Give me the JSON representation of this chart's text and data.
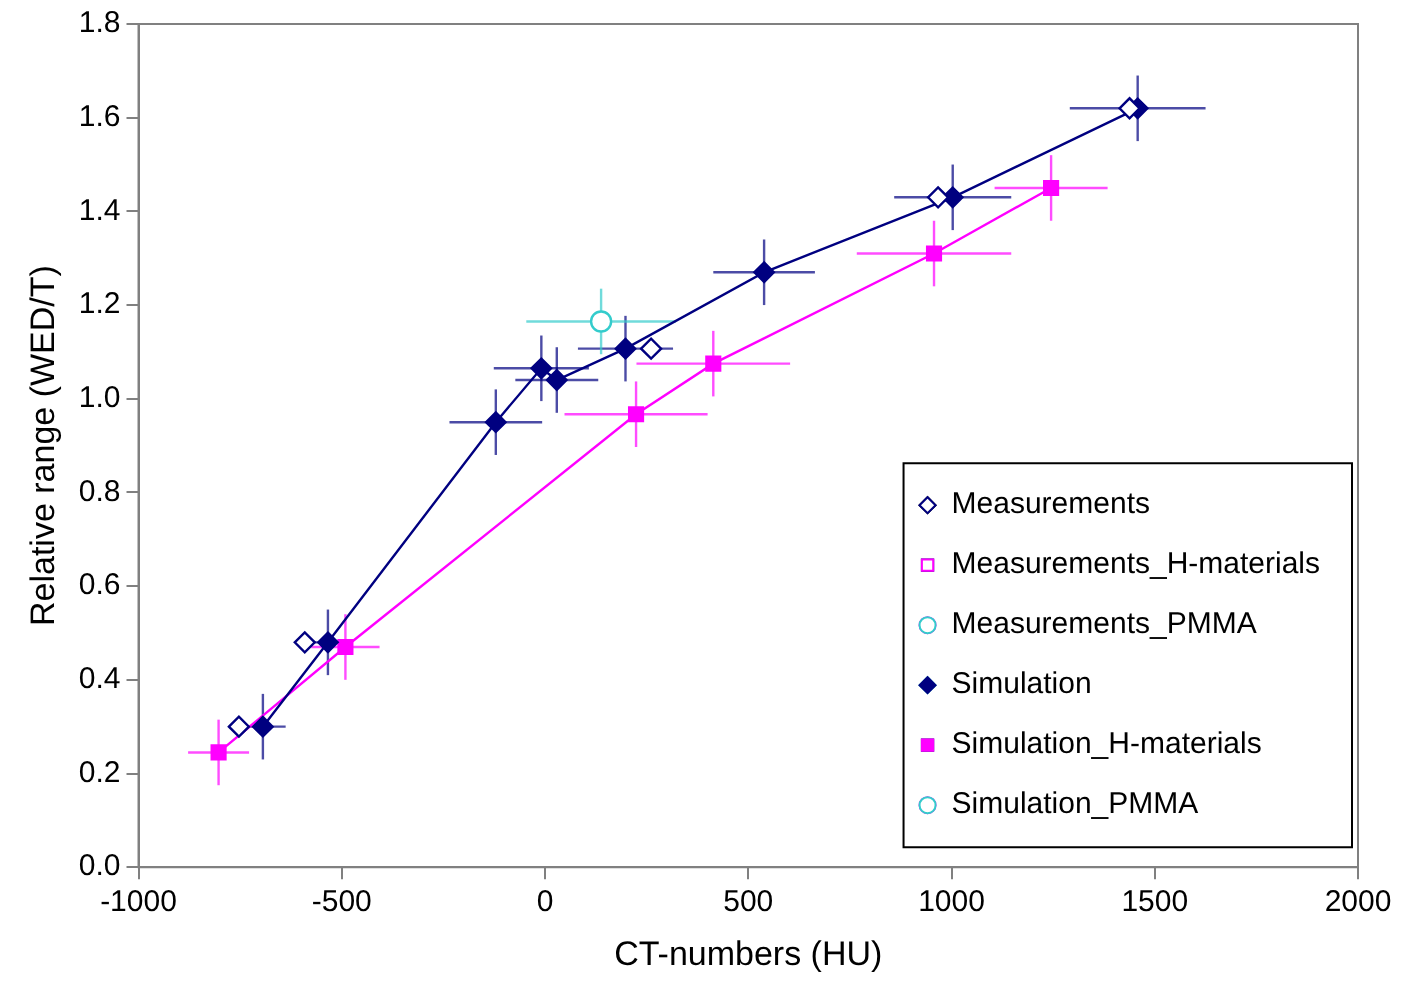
{
  "chart_data": {
    "type": "scatter",
    "xlabel": "CT-numbers (HU)",
    "ylabel": "Relative range (WED/T)",
    "xlim": [
      -1000,
      2000
    ],
    "xticks": [
      -1000,
      -500,
      0,
      500,
      1000,
      1500,
      2000
    ],
    "ylim": [
      0,
      1.8
    ],
    "yticks": [
      {
        "value": 0,
        "label": "0.0"
      },
      {
        "value": 0.2,
        "label": "0.2"
      },
      {
        "value": 0.4,
        "label": "0.4"
      },
      {
        "value": 0.6,
        "label": "0.6"
      },
      {
        "value": 0.8,
        "label": "0.8"
      },
      {
        "value": 1,
        "label": "1.0"
      },
      {
        "value": 1.2,
        "label": "1.2"
      },
      {
        "value": 1.4,
        "label": "1.4"
      },
      {
        "value": 1.6,
        "label": "1.6"
      },
      {
        "value": 1.8,
        "label": "1.8"
      }
    ],
    "grid": false,
    "legend": "bottom right",
    "series": [
      {
        "name": "Measurements",
        "type": "scatter",
        "marker": "diamond",
        "color": "#000080",
        "x": [
          -753,
          -591,
          29,
          261,
          539,
          967,
          1438
        ],
        "values": [
          0.3,
          0.48,
          null,
          1.107,
          null,
          1.43,
          1.62
        ]
      },
      {
        "name": "Measurements_H-materials",
        "type": "scatter",
        "marker": "square",
        "color": "#ff00ff"
      },
      {
        "name": "Measurements_PMMA",
        "type": "scatter",
        "marker": "circle",
        "color": "#33cccc"
      },
      {
        "name": "Simulation",
        "type": "line",
        "marker": "diamond",
        "color": "#000080",
        "x": [
          -694,
          -534,
          -121,
          -9,
          29,
          198,
          539,
          1003,
          1458
        ],
        "values": [
          0.3,
          0.48,
          0.95,
          1.065,
          1.04,
          1.107,
          1.27,
          1.43,
          1.62
        ],
        "xerrors": [
          56,
          60,
          114,
          117,
          102,
          117,
          125,
          144,
          167
        ],
        "errors": [
          0.07,
          0.07,
          0.07,
          0.07,
          0.07,
          0.07,
          0.07,
          0.07,
          0.07
        ]
      },
      {
        "name": "Simulation_H-materials",
        "type": "line",
        "marker": "square",
        "color": "#ff00ff",
        "x": [
          -803,
          -491,
          224,
          414,
          957,
          1245
        ],
        "values": [
          0.245,
          0.47,
          0.967,
          1.075,
          1.31,
          1.45
        ],
        "xerrors": [
          75,
          84,
          176,
          189,
          190,
          139
        ],
        "errors": [
          0.07,
          0.07,
          0.07,
          0.07,
          0.07,
          0.07
        ]
      },
      {
        "name": "Simulation_PMMA",
        "type": "scatter",
        "marker": "circle",
        "color": "#33cccc",
        "x": [
          138
        ],
        "values": [
          1.165
        ],
        "xerrors": [
          184
        ],
        "errors": [
          0.07
        ]
      }
    ]
  }
}
